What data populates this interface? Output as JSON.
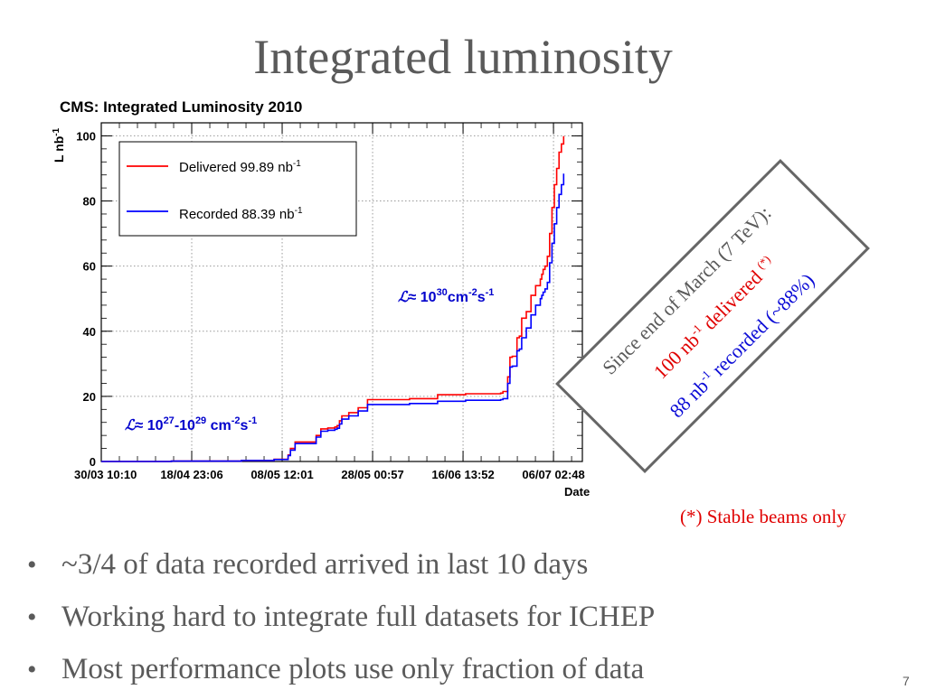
{
  "slide": {
    "title": "Integrated luminosity",
    "page_number": "7",
    "footnote": "(*) Stable beams only",
    "bullets": [
      "~3/4  of data recorded arrived in last 10 days",
      "Working hard to integrate full datasets for ICHEP",
      "Most performance plots use only fraction of data"
    ],
    "bullet_symbol": "•"
  },
  "stamp": {
    "line1": "Since end of March (7 TeV):",
    "line2_value": "100 nb",
    "line2_exp": "-1",
    "line2_word": " delivered ",
    "line2_note": "(*)",
    "line3_value": "88 nb",
    "line3_exp": "-1",
    "line3_word": " recorded (~88%)"
  },
  "chart_data": {
    "type": "line",
    "title": "CMS: Integrated Luminosity 2010",
    "xlabel": "Date",
    "ylabel_base": "L nb",
    "ylabel_exp": "-1",
    "xticks": [
      "30/03 10:10",
      "18/04 23:06",
      "08/05 12:01",
      "28/05 00:57",
      "16/06 13:52",
      "06/07 02:48"
    ],
    "xlim": [
      0,
      103
    ],
    "ylim": [
      0,
      104
    ],
    "yticks": [
      0,
      20,
      40,
      60,
      80,
      100
    ],
    "grid": true,
    "legend_position": "top-left",
    "colors": {
      "delivered": "#ff0000",
      "recorded": "#0000ff",
      "annotation": "#0000cc"
    },
    "annotations": {
      "high": {
        "sym": "ℒ",
        "a": "≈ 10",
        "a_exp": "30",
        "b": "cm",
        "b_exp": "-2",
        "c": "s",
        "c_exp": "-1"
      },
      "low": {
        "sym": "ℒ",
        "a": "≈ 10",
        "a_exp": "27",
        "b": "-10",
        "b_exp": "29",
        "c": " cm",
        "c_exp": "-2",
        "d": "s",
        "d_exp": "-1"
      }
    },
    "series": [
      {
        "name": "Delivered 99.89 nb",
        "name_exp": "-1",
        "x": [
          0,
          15,
          30,
          37,
          40,
          40.5,
          41.5,
          46,
          47,
          48.5,
          50,
          50.5,
          51,
          51.5,
          53,
          55,
          57,
          66,
          72,
          78,
          85.5,
          86,
          87,
          87.5,
          88,
          89,
          89.5,
          90,
          91,
          92,
          93,
          94,
          94.3,
          94.6,
          95,
          95.5,
          96,
          96.5,
          97,
          97.5,
          98,
          98.5,
          99
        ],
        "y": [
          0,
          0.1,
          0.3,
          0.7,
          2.0,
          4.0,
          6.0,
          8.0,
          10.0,
          10.3,
          10.6,
          11.0,
          12.5,
          14.0,
          15.0,
          16.5,
          19.0,
          19.3,
          20.5,
          20.8,
          21.0,
          21.5,
          26.0,
          32.0,
          32.3,
          38.0,
          38.5,
          44.0,
          46.0,
          51.0,
          54.0,
          56.0,
          57.5,
          59.0,
          60.0,
          63.0,
          70.0,
          78.0,
          85.0,
          90.0,
          95.0,
          97.5,
          99.89
        ]
      },
      {
        "name": "Recorded 88.39 nb",
        "name_exp": "-1",
        "x": [
          0,
          15,
          30,
          37,
          40,
          40.5,
          41.5,
          46,
          47,
          48.5,
          50,
          50.5,
          51,
          51.5,
          53,
          55,
          57,
          66,
          72,
          78,
          85.5,
          86,
          87,
          87.5,
          88,
          89,
          89.5,
          90,
          91,
          92,
          93,
          94,
          94.3,
          94.6,
          95,
          95.5,
          96,
          96.5,
          97,
          97.5,
          98,
          98.5,
          99
        ],
        "y": [
          0,
          0.1,
          0.3,
          0.6,
          1.8,
          3.5,
          5.5,
          7.5,
          9.3,
          9.6,
          9.9,
          10.2,
          11.5,
          13.0,
          14.0,
          15.5,
          17.5,
          17.8,
          18.5,
          18.8,
          19.0,
          19.3,
          24.0,
          29.0,
          29.3,
          34.0,
          34.5,
          38.0,
          41.0,
          45.0,
          48.0,
          50.0,
          51.0,
          52.0,
          53.0,
          55.0,
          61.0,
          67.0,
          73.0,
          78.0,
          82.0,
          85.0,
          88.39
        ]
      }
    ]
  }
}
